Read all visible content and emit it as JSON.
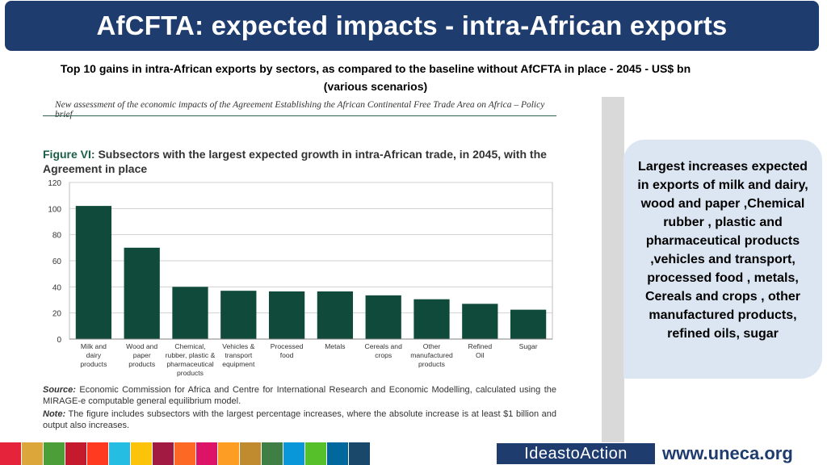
{
  "header": {
    "title": "AfCFTA: expected impacts -  intra-African exports"
  },
  "subtitle": {
    "line1": "Top 10 gains in intra-African exports by sectors, as compared to the baseline without AfCFTA in place - 2045 - US$ bn",
    "line2": "(various scenarios)"
  },
  "figure": {
    "brief": "New assessment of the economic impacts of the Agreement Establishing the African Continental Free Trade Area on Africa – Policy  brief",
    "fig_num": "Figure VI:",
    "fig_title": "Subsectors with the largest expected growth in intra-African trade, in 2045, with the Agreement in place",
    "source_label": "Source:",
    "source_text": "Economic Commission for Africa and Centre for International Research and Economic Modelling, calculated using the MIRAGE-e computable general equilibrium model.",
    "note_label": "Note:",
    "note_text": "The figure includes subsectors with the largest percentage increases, where the absolute increase is at least $1 billion and output also increases."
  },
  "chart_data": {
    "type": "bar",
    "title": "Subsectors with the largest expected growth in intra-African trade, in 2045, with the Agreement in place",
    "categories": [
      [
        "Milk and",
        "dairy",
        "products"
      ],
      [
        "Wood and",
        "paper",
        "products"
      ],
      [
        "Chemical,",
        "rubber, plastic &",
        "pharmaceutical",
        "products"
      ],
      [
        "Vehicles &",
        "transport",
        "equipment"
      ],
      [
        "Processed",
        "food"
      ],
      [
        "Metals"
      ],
      [
        "Cereals and",
        "crops"
      ],
      [
        "Other",
        "manufactured",
        "products"
      ],
      [
        "Refined",
        "Oil"
      ],
      [
        "Sugar"
      ]
    ],
    "values": [
      102,
      70,
      40,
      37,
      36.5,
      36.5,
      33.5,
      30.5,
      27,
      22.5
    ],
    "yticks": [
      0,
      20,
      40,
      60,
      80,
      100,
      120
    ],
    "ylim": [
      0,
      120
    ],
    "xlabel": "",
    "ylabel": "",
    "bar_color": "#0f4a3a",
    "grid": true
  },
  "callout": {
    "text": "Largest increases expected in exports of milk and dairy, wood and paper ,Chemical rubber , plastic and pharmaceutical products ,vehicles and transport, processed food , metals, Cereals and crops , other manufactured products, refined oils, sugar"
  },
  "footer": {
    "sdg_colors": [
      "#e5243b",
      "#dda63a",
      "#4c9f38",
      "#c5192d",
      "#ff3a21",
      "#26bde2",
      "#fcc30b",
      "#a21942",
      "#fd6925",
      "#dd1367",
      "#fd9d24",
      "#bf8b2e",
      "#3f7e44",
      "#0a97d9",
      "#56c02b",
      "#00689d",
      "#19486a"
    ],
    "ideas": "IdeastoAction",
    "site": "www.uneca.org"
  }
}
